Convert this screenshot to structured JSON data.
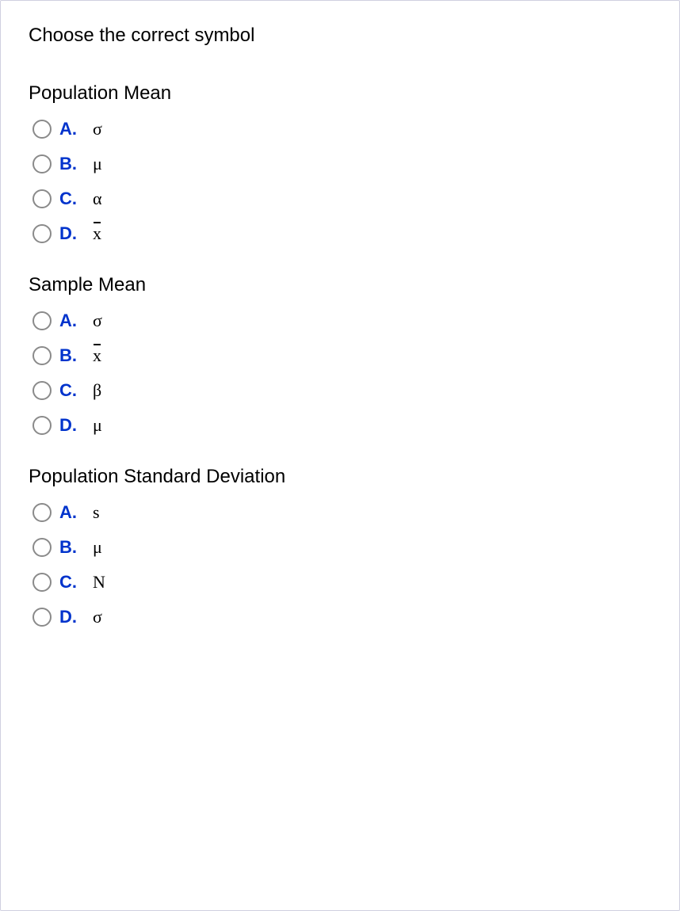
{
  "title": "Choose the correct symbol",
  "questions": [
    {
      "label": "Population Mean",
      "options": [
        {
          "letter": "A.",
          "value": "σ",
          "xbar": false
        },
        {
          "letter": "B.",
          "value": "μ",
          "xbar": false
        },
        {
          "letter": "C.",
          "value": "α",
          "xbar": false
        },
        {
          "letter": "D.",
          "value": "x",
          "xbar": true
        }
      ]
    },
    {
      "label": "Sample Mean",
      "options": [
        {
          "letter": "A.",
          "value": "σ",
          "xbar": false
        },
        {
          "letter": "B.",
          "value": "x",
          "xbar": true
        },
        {
          "letter": "C.",
          "value": "β",
          "xbar": false
        },
        {
          "letter": "D.",
          "value": "μ",
          "xbar": false
        }
      ]
    },
    {
      "label": "Population Standard Deviation",
      "options": [
        {
          "letter": "A.",
          "value": "s",
          "xbar": false
        },
        {
          "letter": "B.",
          "value": "μ",
          "xbar": false
        },
        {
          "letter": "C.",
          "value": "N",
          "xbar": false
        },
        {
          "letter": "D.",
          "value": "σ",
          "xbar": false
        }
      ]
    }
  ],
  "colors": {
    "option_letter": "#0033cc",
    "text": "#000000",
    "radio_border": "#8a8a8a",
    "background": "#ffffff",
    "border": "#d0d0e0"
  }
}
